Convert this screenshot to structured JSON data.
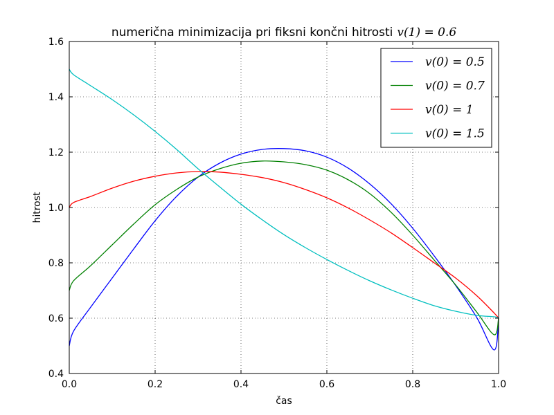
{
  "chart_data": {
    "type": "line",
    "title": "numerična minimizacija pri fiksni končni hitrosti",
    "title_math": "v(1) = 0.6",
    "xlabel": "čas",
    "ylabel": "hitrost",
    "xlim": [
      0.0,
      1.0
    ],
    "ylim": [
      0.4,
      1.6
    ],
    "xticks": [
      "0.0",
      "0.2",
      "0.4",
      "0.6",
      "0.8",
      "1.0"
    ],
    "yticks": [
      "0.4",
      "0.6",
      "0.8",
      "1.0",
      "1.2",
      "1.4",
      "1.6"
    ],
    "grid": true,
    "legend_position": "top-right",
    "series": [
      {
        "name": "v(0) = 0.5",
        "color": "#0000ff",
        "x": [
          0.0,
          0.01,
          0.05,
          0.1,
          0.15,
          0.2,
          0.25,
          0.3,
          0.35,
          0.4,
          0.45,
          0.5,
          0.55,
          0.6,
          0.65,
          0.7,
          0.75,
          0.8,
          0.85,
          0.9,
          0.95,
          0.99,
          1.0
        ],
        "values": [
          0.5,
          0.553,
          0.64,
          0.745,
          0.85,
          0.952,
          1.04,
          1.11,
          1.16,
          1.193,
          1.21,
          1.213,
          1.205,
          1.182,
          1.142,
          1.085,
          1.013,
          0.925,
          0.825,
          0.718,
          0.6,
          0.485,
          0.6
        ]
      },
      {
        "name": "v(0) = 0.7",
        "color": "#008000",
        "x": [
          0.0,
          0.01,
          0.05,
          0.1,
          0.15,
          0.2,
          0.25,
          0.3,
          0.35,
          0.4,
          0.45,
          0.5,
          0.55,
          0.6,
          0.65,
          0.7,
          0.75,
          0.8,
          0.85,
          0.9,
          0.95,
          0.99,
          1.0
        ],
        "values": [
          0.7,
          0.735,
          0.79,
          0.865,
          0.94,
          1.01,
          1.065,
          1.11,
          1.14,
          1.16,
          1.168,
          1.165,
          1.155,
          1.135,
          1.1,
          1.05,
          0.982,
          0.9,
          0.81,
          0.72,
          0.62,
          0.54,
          0.6
        ]
      },
      {
        "name": "v(0) = 1",
        "color": "#ff0000",
        "x": [
          0.0,
          0.01,
          0.05,
          0.1,
          0.15,
          0.2,
          0.25,
          0.3,
          0.35,
          0.4,
          0.45,
          0.5,
          0.55,
          0.6,
          0.65,
          0.7,
          0.75,
          0.8,
          0.85,
          0.9,
          0.95,
          0.99,
          1.0
        ],
        "values": [
          1.0,
          1.018,
          1.04,
          1.07,
          1.095,
          1.113,
          1.125,
          1.13,
          1.128,
          1.12,
          1.108,
          1.09,
          1.065,
          1.035,
          0.998,
          0.955,
          0.908,
          0.855,
          0.8,
          0.745,
          0.68,
          0.618,
          0.6
        ]
      },
      {
        "name": "v(0) = 1.5",
        "color": "#00bfbf",
        "x": [
          0.0,
          0.01,
          0.05,
          0.1,
          0.15,
          0.2,
          0.25,
          0.3,
          0.35,
          0.4,
          0.45,
          0.5,
          0.55,
          0.6,
          0.65,
          0.7,
          0.75,
          0.8,
          0.85,
          0.9,
          0.95,
          0.99,
          1.0
        ],
        "values": [
          1.5,
          1.48,
          1.44,
          1.39,
          1.335,
          1.275,
          1.21,
          1.14,
          1.075,
          1.012,
          0.955,
          0.902,
          0.855,
          0.812,
          0.772,
          0.735,
          0.702,
          0.672,
          0.645,
          0.625,
          0.61,
          0.605,
          0.6
        ]
      }
    ]
  }
}
